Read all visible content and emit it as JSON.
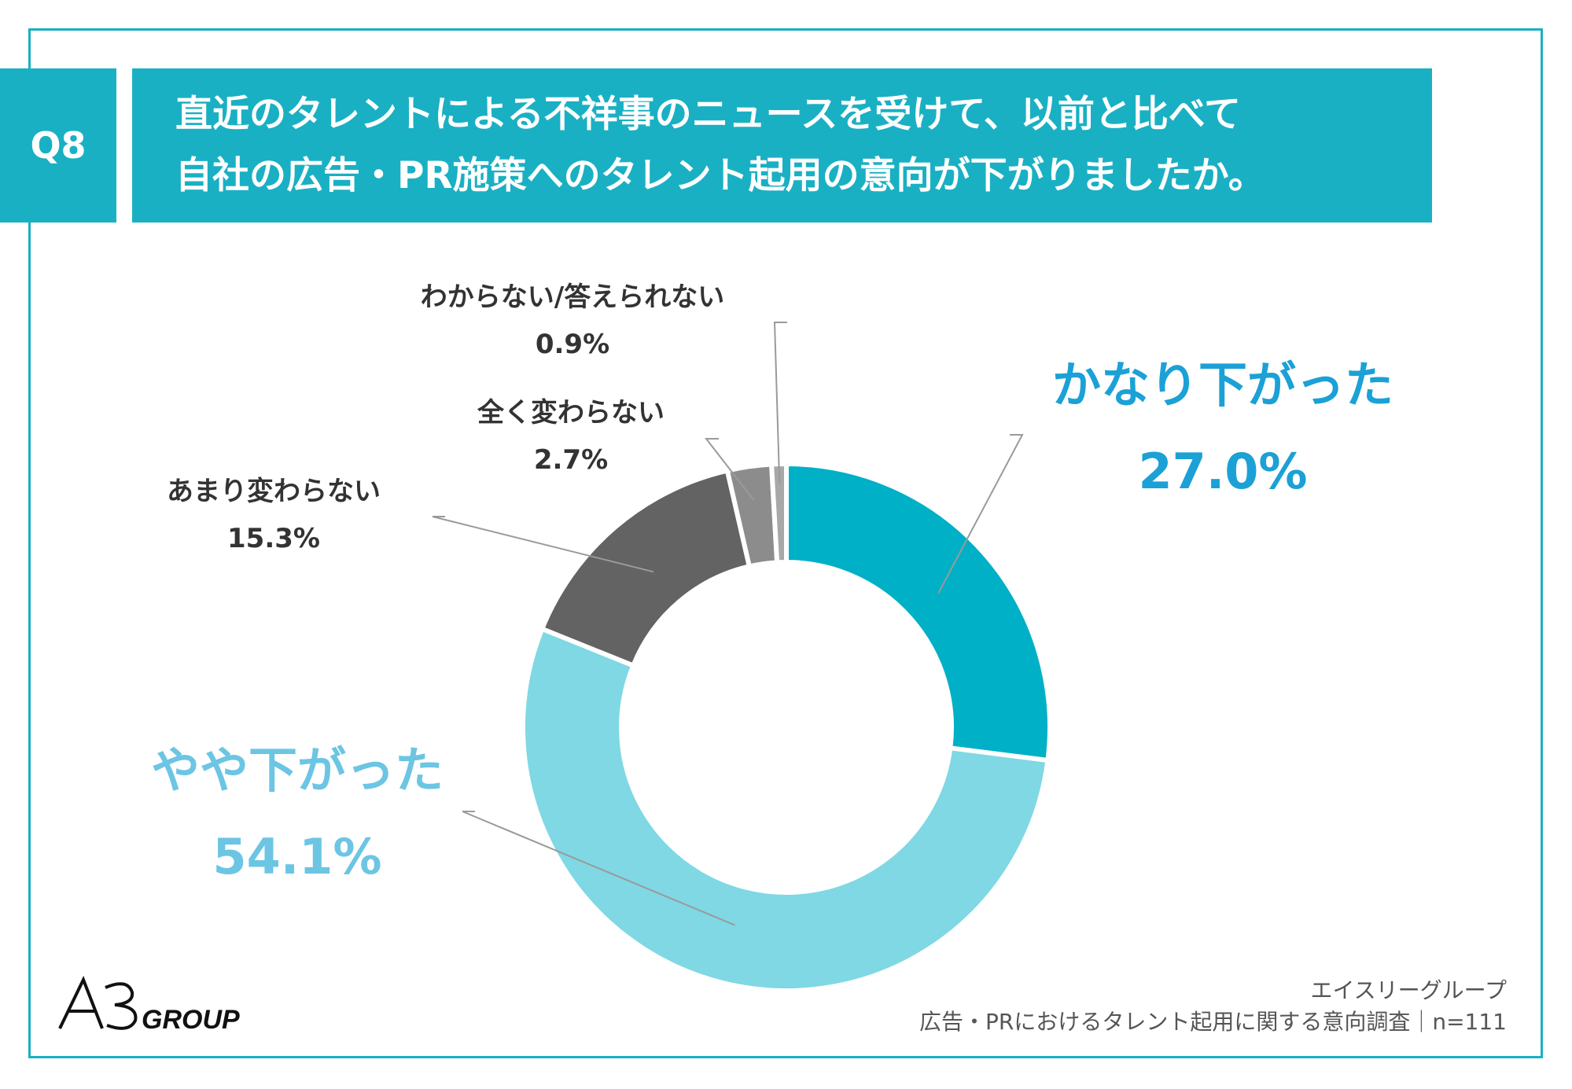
{
  "question": {
    "number": "Q8",
    "line1": "直近のタレントによる不祥事のニュースを受けて、以前と比べて",
    "line2": "自社の広告・PR施策へのタレント起用の意向が下がりましたか。"
  },
  "colors": {
    "accent": "#1ab0c3",
    "slice_1": "#00b0c6",
    "slice_2": "#7fd8e4",
    "slice_3": "#636363",
    "slice_4": "#8c8c8c",
    "slice_5": "#a8a8a8",
    "label_blue": "#1ba1d6",
    "label_lightblue": "#6cc5e3"
  },
  "chart_data": {
    "type": "pie",
    "donut": true,
    "start": "top",
    "direction": "clockwise",
    "slices": [
      {
        "label": "かなり下がった",
        "value": 27.0,
        "value_text": "27.0%"
      },
      {
        "label": "やや下がった",
        "value": 54.1,
        "value_text": "54.1%"
      },
      {
        "label": "あまり変わらない",
        "value": 15.3,
        "value_text": "15.3%"
      },
      {
        "label": "全く変わらない",
        "value": 2.7,
        "value_text": "2.7%"
      },
      {
        "label": "わからない/答えられない",
        "value": 0.9,
        "value_text": "0.9%"
      }
    ]
  },
  "logo": {
    "text": "A3GROUP"
  },
  "source": {
    "line1": "エイスリーグループ",
    "line2": "広告・PRにおけるタレント起用に関する意向調査｜n=111"
  }
}
